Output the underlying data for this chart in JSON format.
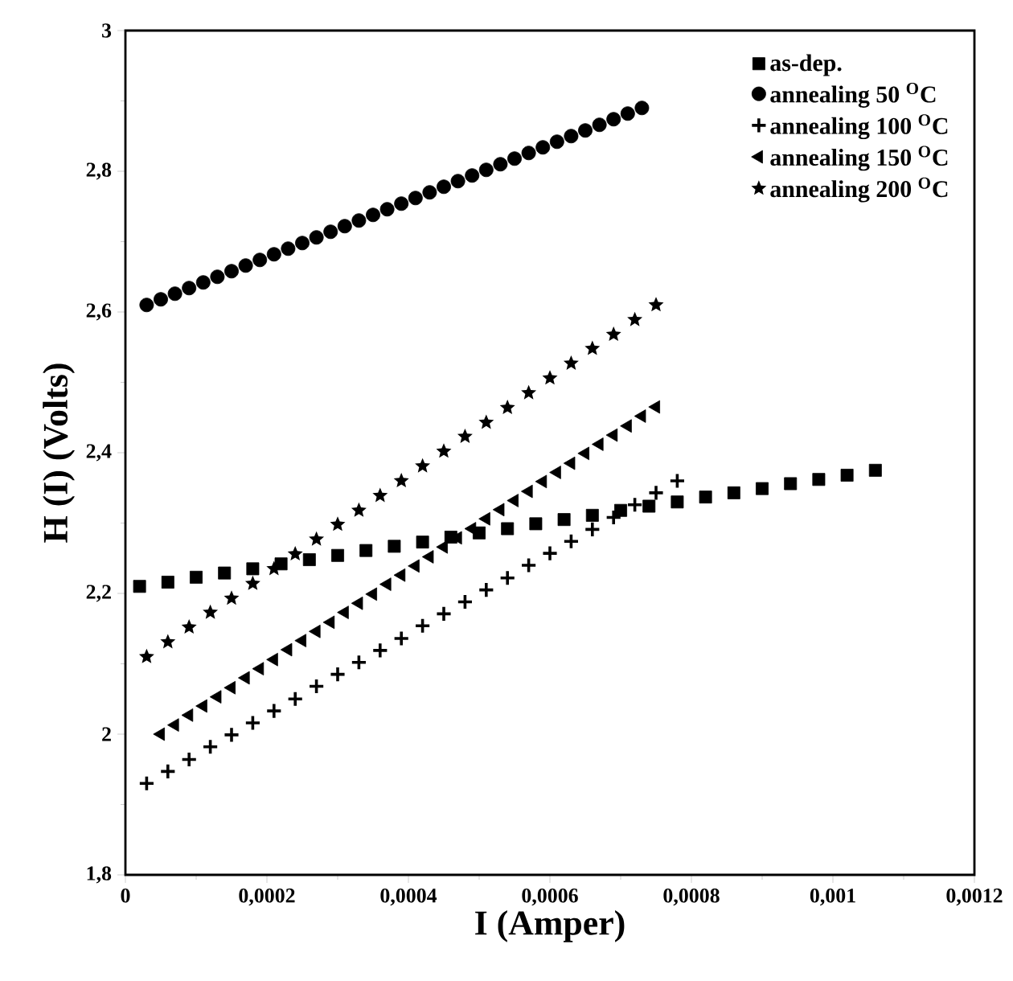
{
  "chart_data": {
    "type": "scatter",
    "xlabel": "I (Amper)",
    "ylabel": "H (I) (Volts)",
    "xlim": [
      0,
      0.0012
    ],
    "ylim": [
      1.8,
      3
    ],
    "xticks": [
      0,
      {
        "value": 0.0002,
        "label": "0,0002"
      },
      {
        "value": 0.0004,
        "label": "0,0004"
      },
      {
        "value": 0.0006,
        "label": "0,0006"
      },
      {
        "value": 0.0008,
        "label": "0,0008"
      },
      {
        "value": 0.001,
        "label": "0,001"
      },
      {
        "value": 0.0012,
        "label": "0,0012"
      }
    ],
    "yticks": [
      {
        "value": 1.8,
        "label": "1,8"
      },
      2,
      {
        "value": 2.2,
        "label": "2,2"
      },
      {
        "value": 2.4,
        "label": "2,4"
      },
      {
        "value": 2.6,
        "label": "2,6"
      },
      {
        "value": 2.8,
        "label": "2,8"
      },
      3
    ],
    "grid": false,
    "legend": "top right",
    "series": [
      {
        "name": "as-dep.",
        "color": "#000000",
        "marker": "square",
        "x": [
          2e-05,
          6e-05,
          0.0001,
          0.00014,
          0.00018,
          0.00022,
          0.00026,
          0.0003,
          0.00034,
          0.00038,
          0.00042,
          0.00046,
          0.0005,
          0.00054,
          0.00058,
          0.00062,
          0.00066,
          0.0007,
          0.00074,
          0.00078,
          0.00082,
          0.00086,
          0.0009,
          0.00094,
          0.00098,
          0.00102,
          0.00106
        ],
        "values": [
          2.21,
          2.216,
          2.223,
          2.229,
          2.235,
          2.242,
          2.248,
          2.254,
          2.261,
          2.267,
          2.273,
          2.28,
          2.286,
          2.292,
          2.299,
          2.305,
          2.311,
          2.318,
          2.324,
          2.33,
          2.337,
          2.343,
          2.349,
          2.356,
          2.362,
          2.368,
          2.375
        ]
      },
      {
        "name": "annealing 50 $^{O}$C",
        "color": "#000000",
        "marker": "circle",
        "x": [
          3e-05,
          5e-05,
          7e-05,
          9e-05,
          0.00011,
          0.00013,
          0.00015,
          0.00017,
          0.00019,
          0.00021,
          0.00023,
          0.00025,
          0.00027,
          0.00029,
          0.00031,
          0.00033,
          0.00035,
          0.00037,
          0.00039,
          0.00041,
          0.00043,
          0.00045,
          0.00047,
          0.00049,
          0.00051,
          0.00053,
          0.00055,
          0.00057,
          0.00059,
          0.00061,
          0.00063,
          0.00065,
          0.00067,
          0.00069,
          0.00071,
          0.00073
        ],
        "values": [
          2.61,
          2.618,
          2.626,
          2.634,
          2.642,
          2.65,
          2.658,
          2.666,
          2.674,
          2.682,
          2.69,
          2.698,
          2.706,
          2.714,
          2.722,
          2.73,
          2.738,
          2.746,
          2.754,
          2.762,
          2.77,
          2.778,
          2.786,
          2.794,
          2.802,
          2.81,
          2.818,
          2.826,
          2.834,
          2.842,
          2.85,
          2.858,
          2.866,
          2.874,
          2.882,
          2.89
        ]
      },
      {
        "name": "annealing 100 $^{O}$C",
        "color": "#000000",
        "marker": "cross",
        "x": [
          3e-05,
          6e-05,
          9e-05,
          0.00012,
          0.00015,
          0.00018,
          0.00021,
          0.00024,
          0.00027,
          0.0003,
          0.00033,
          0.00036,
          0.00039,
          0.00042,
          0.00045,
          0.00048,
          0.00051,
          0.00054,
          0.00057,
          0.0006,
          0.00063,
          0.00066,
          0.00069,
          0.00072,
          0.00075,
          0.00078
        ],
        "values": [
          1.93,
          1.947,
          1.964,
          1.982,
          1.999,
          2.016,
          2.033,
          2.05,
          2.068,
          2.085,
          2.102,
          2.119,
          2.136,
          2.154,
          2.171,
          2.188,
          2.205,
          2.222,
          2.24,
          2.257,
          2.274,
          2.291,
          2.308,
          2.326,
          2.343,
          2.36
        ]
      },
      {
        "name": "annealing 150 $^{O}$C",
        "color": "#000000",
        "marker": "triangle",
        "x": [
          5e-05,
          7e-05,
          9e-05,
          0.00011,
          0.00013,
          0.00015,
          0.00017,
          0.00019,
          0.00021,
          0.00023,
          0.00025,
          0.00027,
          0.00029,
          0.00031,
          0.00033,
          0.00035,
          0.00037,
          0.00039,
          0.00041,
          0.00043,
          0.00045,
          0.00047,
          0.00049,
          0.00051,
          0.00053,
          0.00055,
          0.00057,
          0.00059,
          0.00061,
          0.00063,
          0.00065,
          0.00067,
          0.00069,
          0.00071,
          0.00073,
          0.00075
        ],
        "values": [
          2.0,
          2.013,
          2.027,
          2.04,
          2.053,
          2.066,
          2.08,
          2.093,
          2.106,
          2.12,
          2.133,
          2.146,
          2.159,
          2.173,
          2.186,
          2.199,
          2.213,
          2.226,
          2.239,
          2.252,
          2.266,
          2.279,
          2.292,
          2.306,
          2.319,
          2.332,
          2.345,
          2.359,
          2.372,
          2.385,
          2.399,
          2.412,
          2.425,
          2.438,
          2.452,
          2.465
        ]
      },
      {
        "name": "annealing 200 $^{O}$C",
        "color": "#000000",
        "marker": "star",
        "x": [
          3e-05,
          6e-05,
          9e-05,
          0.00012,
          0.00015,
          0.00018,
          0.00021,
          0.00024,
          0.00027,
          0.0003,
          0.00033,
          0.00036,
          0.00039,
          0.00042,
          0.00045,
          0.00048,
          0.00051,
          0.00054,
          0.00057,
          0.0006,
          0.00063,
          0.00066,
          0.00069,
          0.00072,
          0.00075
        ],
        "values": [
          2.11,
          2.131,
          2.152,
          2.173,
          2.193,
          2.214,
          2.235,
          2.256,
          2.277,
          2.298,
          2.318,
          2.339,
          2.36,
          2.381,
          2.402,
          2.423,
          2.443,
          2.464,
          2.485,
          2.506,
          2.527,
          2.548,
          2.568,
          2.589,
          2.61
        ]
      }
    ]
  }
}
